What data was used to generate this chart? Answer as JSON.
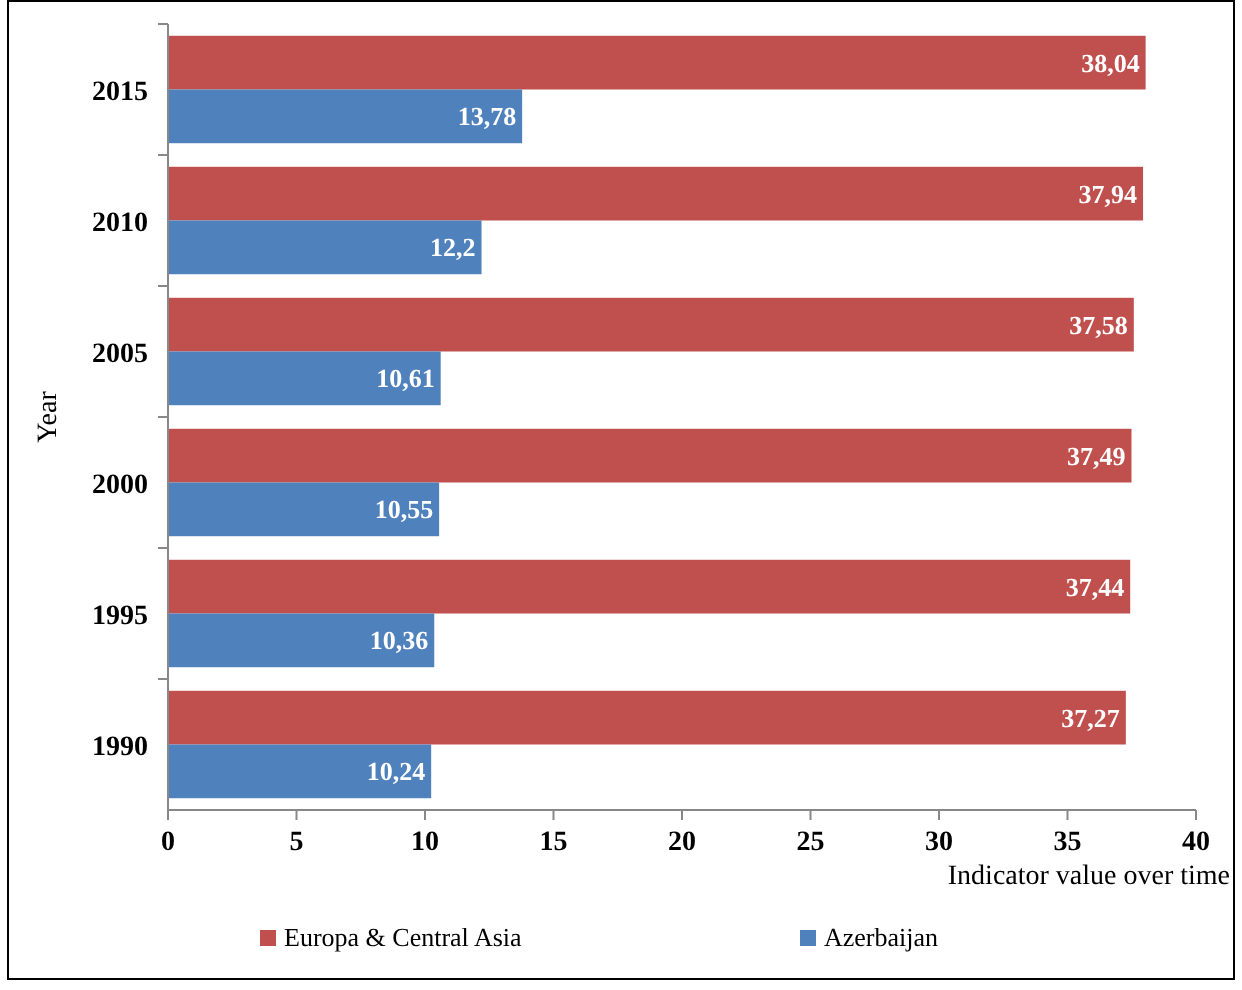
{
  "chart_data": {
    "type": "bar",
    "orientation": "horizontal",
    "ylabel": "Year",
    "xlabel": "Indicator value over time",
    "categories": [
      "2015",
      "2010",
      "2005",
      "2000",
      "1995",
      "1990"
    ],
    "series": [
      {
        "name": "Europa & Central Asia",
        "color": "#c0504d",
        "values": [
          38.04,
          37.94,
          37.58,
          37.49,
          37.44,
          37.27
        ],
        "value_labels": [
          "38,04",
          "37,94",
          "37,58",
          "37,49",
          "37,44",
          "37,27"
        ]
      },
      {
        "name": "Azerbaijan",
        "color": "#4f81bd",
        "values": [
          13.78,
          12.2,
          10.61,
          10.55,
          10.36,
          10.24
        ],
        "value_labels": [
          "13,78",
          "12,2",
          "10,61",
          "10,55",
          "10,36",
          "10,24"
        ]
      }
    ],
    "xlim": [
      0,
      40
    ],
    "xticks": [
      0,
      5,
      10,
      15,
      20,
      25,
      30,
      35,
      40
    ],
    "grid": false,
    "legend": "bottom"
  }
}
